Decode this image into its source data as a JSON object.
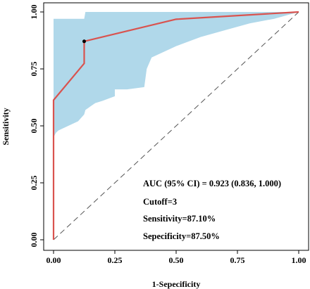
{
  "chart_data": {
    "type": "line",
    "xlabel": "1-Sepecificity",
    "ylabel": "Sensitivity",
    "xlim": [
      0,
      1
    ],
    "ylim": [
      0,
      1
    ],
    "xticks": [
      "0.00",
      "0.25",
      "0.50",
      "0.75",
      "1.00"
    ],
    "yticks": [
      "0.00",
      "0.25",
      "0.50",
      "0.75",
      "1.00"
    ],
    "grid": false,
    "colors": {
      "roc": "#d9534f",
      "ci_band": "#b0d8ea",
      "diagonal": "#555555",
      "cutoff_point": "#000000"
    },
    "roc_curve": {
      "x": [
        0,
        0,
        0,
        0.125,
        0.125,
        0.5,
        1
      ],
      "y": [
        0,
        0.45,
        0.613,
        0.774,
        0.871,
        0.968,
        1
      ]
    },
    "ci_band": {
      "x": [
        0,
        0.005,
        0.01,
        0.02,
        0.06,
        0.1,
        0.125,
        0.13,
        0.17,
        0.2,
        0.25,
        0.25,
        0.3,
        0.37,
        0.38,
        0.4,
        0.5,
        0.6,
        0.7,
        0.8,
        0.9,
        1
      ],
      "upper": [
        0.97,
        0.97,
        0.97,
        0.97,
        0.97,
        0.97,
        0.97,
        1,
        1,
        1,
        1,
        1,
        1,
        1,
        1,
        1,
        1,
        1,
        1,
        1,
        1,
        1
      ],
      "lower": [
        0.45,
        0.46,
        0.47,
        0.48,
        0.5,
        0.52,
        0.55,
        0.57,
        0.6,
        0.61,
        0.63,
        0.66,
        0.66,
        0.67,
        0.75,
        0.8,
        0.85,
        0.89,
        0.92,
        0.95,
        0.97,
        1
      ]
    },
    "cutoff_point": {
      "x": 0.125,
      "y": 0.871
    },
    "annotations": [
      "AUC (95% CI) = 0.923 (0.836, 1.000)",
      "Cutoff=3",
      "Sensitivity=87.10%",
      "Sepecificity=87.50%"
    ]
  }
}
